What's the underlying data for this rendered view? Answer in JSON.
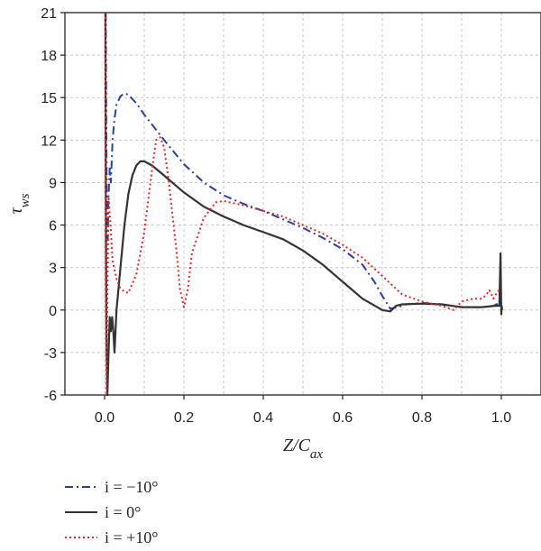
{
  "chart_data": {
    "type": "line",
    "xlabel": "Z/C",
    "xlabel_sub": "ax",
    "ylabel": "τ",
    "ylabel_sub": "ws",
    "xlim": [
      -0.1,
      1.1
    ],
    "ylim": [
      -6,
      21
    ],
    "xticks": [
      "0.0",
      "0.2",
      "0.4",
      "0.6",
      "0.8",
      "1.0"
    ],
    "yticks": [
      "-6",
      "-3",
      "0",
      "3",
      "6",
      "9",
      "12",
      "15",
      "18",
      "21"
    ],
    "xtick_values": [
      0.0,
      0.2,
      0.4,
      0.6,
      0.8,
      1.0
    ],
    "ytick_values": [
      -6,
      -3,
      0,
      3,
      6,
      9,
      12,
      15,
      18,
      21
    ],
    "grid": true,
    "legend_position": "below",
    "series": [
      {
        "name": "i = −10°",
        "color": "#2b3f9e",
        "style": "dash-dot",
        "x": [
          0.003,
          0.004,
          0.006,
          0.008,
          0.01,
          0.013,
          0.016,
          0.02,
          0.025,
          0.03,
          0.04,
          0.05,
          0.06,
          0.08,
          0.1,
          0.15,
          0.2,
          0.25,
          0.3,
          0.35,
          0.4,
          0.45,
          0.5,
          0.55,
          0.6,
          0.65,
          0.68,
          0.7,
          0.72,
          0.74,
          0.76,
          0.8,
          0.85,
          0.9,
          0.95,
          0.98,
          0.995,
          1.0
        ],
        "y": [
          21,
          14,
          6,
          5,
          8,
          10,
          9,
          12,
          13.5,
          14.5,
          15.1,
          15.3,
          15.2,
          14.6,
          13.8,
          12.0,
          10.3,
          9.0,
          8.1,
          7.5,
          7.0,
          6.4,
          5.8,
          5.1,
          4.3,
          3.2,
          2.0,
          1.0,
          0.1,
          0.2,
          0.4,
          0.5,
          0.4,
          0.2,
          0.2,
          0.3,
          0.5,
          1.0
        ]
      },
      {
        "name": "i = 0°",
        "color": "#333333",
        "style": "solid",
        "x": [
          0.002,
          0.003,
          0.004,
          0.005,
          0.007,
          0.01,
          0.013,
          0.016,
          0.019,
          0.022,
          0.025,
          0.03,
          0.04,
          0.05,
          0.06,
          0.07,
          0.08,
          0.09,
          0.1,
          0.12,
          0.15,
          0.2,
          0.25,
          0.3,
          0.35,
          0.4,
          0.45,
          0.5,
          0.55,
          0.6,
          0.65,
          0.7,
          0.72,
          0.735,
          0.75,
          0.8,
          0.85,
          0.9,
          0.95,
          0.985,
          0.995,
          0.998,
          1.0,
          1.001,
          1.002
        ],
        "y": [
          21,
          10,
          2,
          -3,
          -6,
          -3,
          -0.5,
          -1.5,
          -0.5,
          -1.5,
          -3,
          0,
          3,
          6,
          8.2,
          9.5,
          10.2,
          10.5,
          10.5,
          10.2,
          9.5,
          8.3,
          7.3,
          6.6,
          6.0,
          5.5,
          5.0,
          4.2,
          3.2,
          2.0,
          0.8,
          0.0,
          -0.1,
          0.3,
          0.4,
          0.45,
          0.4,
          0.2,
          0.2,
          0.3,
          0.3,
          4.0,
          -0.3,
          0.3,
          0.0
        ]
      },
      {
        "name": "i = +10°",
        "color": "#e8262a",
        "style": "dotted",
        "x": [
          0.002,
          0.003,
          0.005,
          0.007,
          0.01,
          0.015,
          0.02,
          0.03,
          0.04,
          0.05,
          0.06,
          0.08,
          0.1,
          0.12,
          0.13,
          0.14,
          0.15,
          0.16,
          0.18,
          0.19,
          0.2,
          0.21,
          0.22,
          0.25,
          0.28,
          0.3,
          0.35,
          0.4,
          0.45,
          0.5,
          0.55,
          0.6,
          0.65,
          0.7,
          0.75,
          0.8,
          0.85,
          0.88,
          0.9,
          0.93,
          0.95,
          0.96,
          0.97,
          0.98,
          0.99,
          1.0
        ],
        "y": [
          21,
          2,
          -6,
          1,
          8,
          6,
          3.5,
          2.2,
          1.5,
          1.3,
          1.2,
          2.5,
          5.5,
          10,
          12,
          12.2,
          11.5,
          9.5,
          4.5,
          1.5,
          0.2,
          1.5,
          4,
          6.5,
          7.6,
          7.7,
          7.4,
          7.0,
          6.6,
          6.0,
          5.4,
          4.6,
          3.7,
          2.4,
          1.1,
          0.6,
          0.3,
          0.0,
          0.6,
          0.8,
          0.8,
          1.0,
          1.4,
          0.8,
          1.3,
          1.5
        ]
      }
    ]
  }
}
